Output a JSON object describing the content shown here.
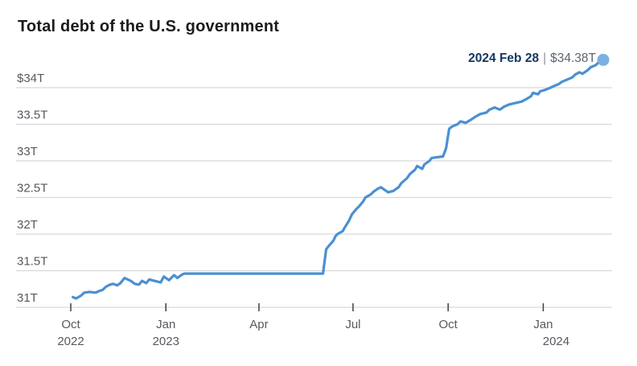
{
  "header": {
    "title": "Total debt of the U.S. government"
  },
  "annotation": {
    "date_label": "2024 Feb 28",
    "separator": "|",
    "value_label": "$34.38T"
  },
  "style": {
    "grid_color": "#d8d9da",
    "tick_color": "#3a3f44",
    "axis_label_color": "#55595e",
    "title_color": "#1b1b1b",
    "annotation_date_color": "#14375f",
    "annotation_value_color": "#5b6770",
    "line_color": "#4a90d2",
    "dot_color": "#7bb1e0"
  },
  "chart_data": {
    "type": "line",
    "title": "Total debt of the U.S. government",
    "unit": "trillions of U.S. dollars",
    "legend": "none",
    "grid": "horizontal-only",
    "x_range": [
      "2022-10-01",
      "2024-02-28"
    ],
    "y_axis": {
      "min": 31,
      "max": 34.5,
      "ticks": [
        {
          "label": "$34T",
          "value": 34
        },
        {
          "label": "33.5T",
          "value": 33.5
        },
        {
          "label": "33T",
          "value": 33
        },
        {
          "label": "32.5T",
          "value": 32.5
        },
        {
          "label": "32T",
          "value": 32
        },
        {
          "label": "31.5T",
          "value": 31.5
        },
        {
          "label": "31T",
          "value": 31
        }
      ]
    },
    "x_axis": {
      "ticks": [
        {
          "label": "Oct",
          "year": "2022",
          "date": "2022-10-01",
          "year_dx": 0
        },
        {
          "label": "Jan",
          "year": "2023",
          "date": "2023-01-01",
          "year_dx": 0
        },
        {
          "label": "Apr",
          "year": "",
          "date": "2023-04-01",
          "year_dx": 0
        },
        {
          "label": "Jul",
          "year": "",
          "date": "2023-07-01",
          "year_dx": 0
        },
        {
          "label": "Oct",
          "year": "",
          "date": "2023-10-01",
          "year_dx": 0
        },
        {
          "label": "Jan",
          "year": "2024",
          "date": "2024-01-01",
          "year_dx": 16
        }
      ]
    },
    "series": [
      {
        "name": "Total U.S. government debt",
        "color": "#4a90d2",
        "points": [
          [
            "2022-10-03",
            31.14
          ],
          [
            "2022-10-06",
            31.12
          ],
          [
            "2022-10-11",
            31.16
          ],
          [
            "2022-10-14",
            31.2
          ],
          [
            "2022-10-19",
            31.21
          ],
          [
            "2022-10-25",
            31.2
          ],
          [
            "2022-10-28",
            31.22
          ],
          [
            "2022-11-01",
            31.24
          ],
          [
            "2022-11-04",
            31.28
          ],
          [
            "2022-11-08",
            31.31
          ],
          [
            "2022-11-11",
            31.32
          ],
          [
            "2022-11-15",
            31.3
          ],
          [
            "2022-11-18",
            31.33
          ],
          [
            "2022-11-22",
            31.4
          ],
          [
            "2022-11-28",
            31.36
          ],
          [
            "2022-12-02",
            31.32
          ],
          [
            "2022-12-06",
            31.31
          ],
          [
            "2022-12-09",
            31.36
          ],
          [
            "2022-12-13",
            31.33
          ],
          [
            "2022-12-16",
            31.38
          ],
          [
            "2022-12-21",
            31.36
          ],
          [
            "2022-12-27",
            31.34
          ],
          [
            "2022-12-30",
            31.42
          ],
          [
            "2023-01-04",
            31.37
          ],
          [
            "2023-01-09",
            31.44
          ],
          [
            "2023-01-12",
            31.4
          ],
          [
            "2023-01-17",
            31.45
          ],
          [
            "2023-01-19",
            31.46
          ],
          [
            "2023-02-15",
            31.46
          ],
          [
            "2023-03-15",
            31.46
          ],
          [
            "2023-04-14",
            31.46
          ],
          [
            "2023-05-15",
            31.46
          ],
          [
            "2023-06-02",
            31.46
          ],
          [
            "2023-06-05",
            31.79
          ],
          [
            "2023-06-07",
            31.83
          ],
          [
            "2023-06-09",
            31.86
          ],
          [
            "2023-06-12",
            31.91
          ],
          [
            "2023-06-14",
            31.97
          ],
          [
            "2023-06-16",
            32.0
          ],
          [
            "2023-06-21",
            32.04
          ],
          [
            "2023-06-23",
            32.09
          ],
          [
            "2023-06-27",
            32.18
          ],
          [
            "2023-06-30",
            32.27
          ],
          [
            "2023-07-04",
            32.34
          ],
          [
            "2023-07-07",
            32.38
          ],
          [
            "2023-07-11",
            32.45
          ],
          [
            "2023-07-13",
            32.5
          ],
          [
            "2023-07-18",
            32.54
          ],
          [
            "2023-07-21",
            32.58
          ],
          [
            "2023-07-25",
            32.62
          ],
          [
            "2023-07-28",
            32.64
          ],
          [
            "2023-08-01",
            32.6
          ],
          [
            "2023-08-04",
            32.57
          ],
          [
            "2023-08-09",
            32.59
          ],
          [
            "2023-08-14",
            32.64
          ],
          [
            "2023-08-17",
            32.7
          ],
          [
            "2023-08-22",
            32.76
          ],
          [
            "2023-08-25",
            32.82
          ],
          [
            "2023-08-30",
            32.88
          ],
          [
            "2023-09-01",
            32.93
          ],
          [
            "2023-09-06",
            32.89
          ],
          [
            "2023-09-08",
            32.95
          ],
          [
            "2023-09-13",
            33.0
          ],
          [
            "2023-09-15",
            33.04
          ],
          [
            "2023-09-20",
            33.05
          ],
          [
            "2023-09-26",
            33.06
          ],
          [
            "2023-09-29",
            33.17
          ],
          [
            "2023-10-02",
            33.44
          ],
          [
            "2023-10-05",
            33.47
          ],
          [
            "2023-10-10",
            33.5
          ],
          [
            "2023-10-13",
            33.54
          ],
          [
            "2023-10-18",
            33.52
          ],
          [
            "2023-10-24",
            33.57
          ],
          [
            "2023-10-27",
            33.6
          ],
          [
            "2023-11-01",
            33.64
          ],
          [
            "2023-11-07",
            33.66
          ],
          [
            "2023-11-10",
            33.7
          ],
          [
            "2023-11-15",
            33.73
          ],
          [
            "2023-11-20",
            33.7
          ],
          [
            "2023-11-24",
            33.74
          ],
          [
            "2023-11-29",
            33.77
          ],
          [
            "2023-12-05",
            33.79
          ],
          [
            "2023-12-11",
            33.81
          ],
          [
            "2023-12-15",
            33.84
          ],
          [
            "2023-12-20",
            33.88
          ],
          [
            "2023-12-22",
            33.93
          ],
          [
            "2023-12-27",
            33.91
          ],
          [
            "2023-12-29",
            33.95
          ],
          [
            "2024-01-03",
            33.97
          ],
          [
            "2024-01-08",
            34.0
          ],
          [
            "2024-01-11",
            34.02
          ],
          [
            "2024-01-16",
            34.05
          ],
          [
            "2024-01-19",
            34.08
          ],
          [
            "2024-01-24",
            34.11
          ],
          [
            "2024-01-29",
            34.14
          ],
          [
            "2024-02-01",
            34.18
          ],
          [
            "2024-02-05",
            34.21
          ],
          [
            "2024-02-08",
            34.19
          ],
          [
            "2024-02-13",
            34.24
          ],
          [
            "2024-02-16",
            34.28
          ],
          [
            "2024-02-21",
            34.31
          ],
          [
            "2024-02-23",
            34.34
          ],
          [
            "2024-02-27",
            34.36
          ],
          [
            "2024-02-28",
            34.38
          ]
        ]
      }
    ],
    "end_point": {
      "date": "2024-02-28",
      "value": 34.38,
      "label": "2024 Feb 28 | $34.38T"
    }
  }
}
